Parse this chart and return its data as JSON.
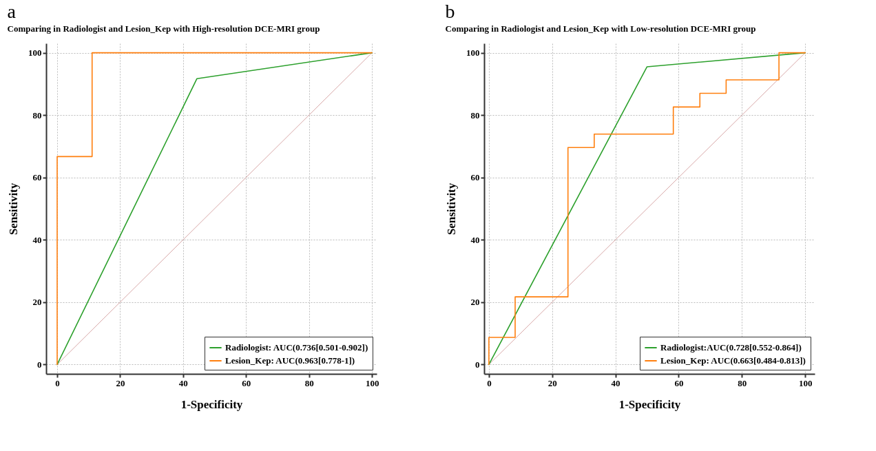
{
  "chart_data": [
    {
      "type": "line",
      "title": "Comparing in Radiologist and Lesion_Kep with High-resolution DCE-MRI group",
      "annotations": [
        "a"
      ],
      "xlabel": "1-Specificity",
      "ylabel": "Sensitivity",
      "xlim": [
        -3.5,
        101.5
      ],
      "ylim": [
        -3,
        103
      ],
      "xticks": [
        0,
        20,
        40,
        60,
        80,
        100
      ],
      "yticks": [
        0,
        20,
        40,
        60,
        80,
        100
      ],
      "grid": true,
      "legend": "bottom right",
      "series": [
        {
          "name": "Radiologist: AUC(0.736[0.501-0.902])",
          "color": "#2ca02c",
          "x": [
            0,
            44.4,
            100
          ],
          "values": [
            0,
            91.7,
            100
          ]
        },
        {
          "name": "Lesion_Kep: AUC(0.963[0.778-1])",
          "color": "#ff7f0e",
          "x": [
            0,
            0,
            11.1,
            11.1,
            100
          ],
          "values": [
            0,
            66.7,
            66.7,
            100,
            100
          ]
        },
        {
          "color": "#d8a8a8",
          "x": [
            0,
            100
          ],
          "values": [
            0,
            100
          ]
        }
      ]
    },
    {
      "type": "line",
      "title": "Comparing in Radiologist and Lesion_Kep with Low-resolution DCE-MRI group",
      "annotations": [
        "b"
      ],
      "xlabel": "1-Specificity",
      "ylabel": "Sensitivity",
      "xlim": [
        -1.5,
        103
      ],
      "ylim": [
        -3,
        103
      ],
      "xticks": [
        0,
        20,
        40,
        60,
        80,
        100
      ],
      "yticks": [
        0,
        20,
        40,
        60,
        80,
        100
      ],
      "grid": true,
      "legend": "bottom right",
      "series": [
        {
          "name": "Radiologist:AUC(0.728[0.552-0.864])",
          "color": "#2ca02c",
          "x": [
            0,
            50,
            100
          ],
          "values": [
            0,
            95.5,
            100
          ]
        },
        {
          "name": "Lesion_Kep: AUC(0.663[0.484-0.813])",
          "color": "#ff7f0e",
          "x": [
            0,
            0,
            8.3,
            8.3,
            25,
            25,
            33.3,
            33.3,
            58.3,
            58.3,
            66.7,
            66.7,
            75,
            75,
            91.7,
            91.7,
            100
          ],
          "values": [
            0,
            8.7,
            8.7,
            21.7,
            21.7,
            69.6,
            69.6,
            73.9,
            73.9,
            82.6,
            82.6,
            87.0,
            87.0,
            91.3,
            91.3,
            100,
            100
          ]
        },
        {
          "color": "#d8a8a8",
          "x": [
            0,
            100
          ],
          "values": [
            0,
            100
          ]
        }
      ]
    }
  ]
}
